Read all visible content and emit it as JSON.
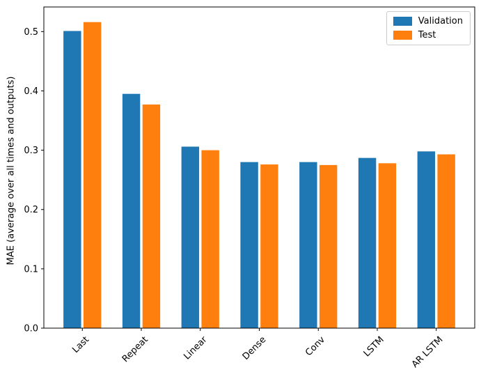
{
  "window": {
    "background_color": "#ffffff"
  },
  "chart_data": {
    "type": "bar",
    "title": "",
    "xlabel": "",
    "ylabel": "MAE (average over all times and outputs)",
    "categories": [
      "Last",
      "Repeat",
      "Linear",
      "Dense",
      "Conv",
      "LSTM",
      "AR LSTM"
    ],
    "series": [
      {
        "name": "Validation",
        "color": "#1f77b4",
        "values": [
          0.501,
          0.395,
          0.306,
          0.28,
          0.28,
          0.287,
          0.298
        ]
      },
      {
        "name": "Test",
        "color": "#ff7f0e",
        "values": [
          0.516,
          0.377,
          0.3,
          0.276,
          0.275,
          0.278,
          0.293
        ]
      }
    ],
    "ylim": [
      0,
      0.5415
    ],
    "yticks": [
      {
        "value": 0.0,
        "label": "0.0"
      },
      {
        "value": 0.1,
        "label": "0.1"
      },
      {
        "value": 0.2,
        "label": "0.2"
      },
      {
        "value": 0.3,
        "label": "0.3"
      },
      {
        "value": 0.4,
        "label": "0.4"
      },
      {
        "value": 0.5,
        "label": "0.5"
      }
    ],
    "x_tick_rotation": 45,
    "grid": false,
    "legend_position": "upper right",
    "bar_width": 0.3,
    "group_offset": 0.17,
    "axis_color": "#000000",
    "tick_text_color": "#000000"
  }
}
